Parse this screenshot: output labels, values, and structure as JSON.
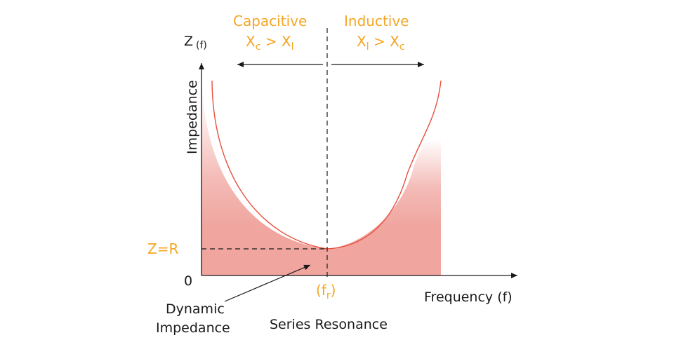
{
  "axes": {
    "y_main": "Z",
    "y_sub": "(f)",
    "y_label": "Impedance",
    "x_label": "Frequency (f)",
    "origin": "0"
  },
  "markers": {
    "zr": "Z=R",
    "fr_open": "(f",
    "fr_sub": "r",
    "fr_close": ")"
  },
  "regions": {
    "capacitive": {
      "title": "Capacitive",
      "x1": "X",
      "x1_sub": "c",
      "op": " > ",
      "x2": "X",
      "x2_sub": "l"
    },
    "inductive": {
      "title": "Inductive",
      "x1": "X",
      "x1_sub": "l",
      "op": " > ",
      "x2": "X",
      "x2_sub": "c"
    }
  },
  "annotations": {
    "dynamic_line1": "Dynamic",
    "dynamic_line2": "Impedance",
    "series_resonance": "Series Resonance"
  },
  "colors": {
    "curve": "#e84f3c",
    "fill": "#f0a59f",
    "accent": "#f5a623",
    "axis": "#1a1a1a"
  }
}
